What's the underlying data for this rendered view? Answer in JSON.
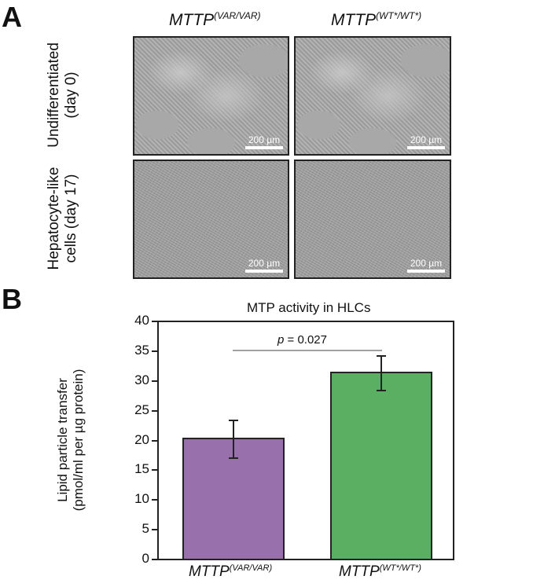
{
  "panel_a": {
    "letter": "A",
    "columns": [
      {
        "gene": "MTTP",
        "genotype": "(VAR/VAR)"
      },
      {
        "gene": "MTTP",
        "genotype": "(WT*/WT*)"
      }
    ],
    "rows": [
      {
        "line1": "Undifferentiated",
        "line2": "(day 0)"
      },
      {
        "line1": "Hepatocyte-like",
        "line2": "cells (day 17)"
      }
    ],
    "scale_bar": "200 µm"
  },
  "panel_b": {
    "letter": "B",
    "significance": {
      "p_label": "p",
      "p_text": " = 0.027"
    }
  },
  "chart_data": {
    "type": "bar",
    "title": "MTP activity in HLCs",
    "categories": [
      "MTTP(VAR/VAR)",
      "MTTP(WT*/WT*)"
    ],
    "category_labels": [
      {
        "gene": "MTTP",
        "genotype": "(VAR/VAR)"
      },
      {
        "gene": "MTTP",
        "genotype": "(WT*/WT*)"
      }
    ],
    "values": [
      20.3,
      31.4
    ],
    "error": [
      3.2,
      2.9
    ],
    "colors": [
      "#9870ab",
      "#5aaf62"
    ],
    "xlabel": "",
    "ylabel_line1": "Lipid particle transfer",
    "ylabel_line2": "(pmol/ml per µg protein)",
    "ylim": [
      0,
      40
    ],
    "yticks": [
      "0",
      "5",
      "10",
      "15",
      "20",
      "25",
      "30",
      "35",
      "40"
    ],
    "grid": false,
    "annotation": "p = 0.027"
  }
}
